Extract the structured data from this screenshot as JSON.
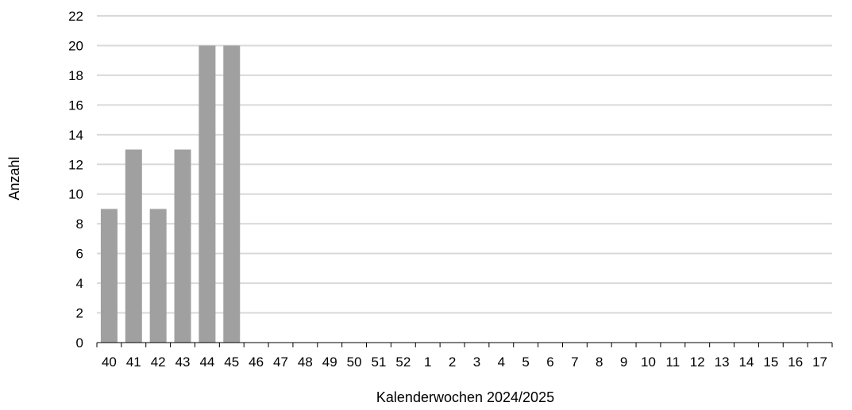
{
  "chart_data": {
    "type": "bar",
    "title": "",
    "xlabel": "Kalenderwochen 2024/2025",
    "ylabel": "Anzahl",
    "ylim": [
      0,
      22
    ],
    "yticks": [
      0,
      2,
      4,
      6,
      8,
      10,
      12,
      14,
      16,
      18,
      20,
      22
    ],
    "grid": true,
    "legend": "none",
    "categories": [
      "40",
      "41",
      "42",
      "43",
      "44",
      "45",
      "46",
      "47",
      "48",
      "49",
      "50",
      "51",
      "52",
      "1",
      "2",
      "3",
      "4",
      "5",
      "6",
      "7",
      "8",
      "9",
      "10",
      "11",
      "12",
      "13",
      "14",
      "15",
      "16",
      "17"
    ],
    "values": [
      9,
      13,
      9,
      13,
      20,
      20,
      null,
      null,
      null,
      null,
      null,
      null,
      null,
      null,
      null,
      null,
      null,
      null,
      null,
      null,
      null,
      null,
      null,
      null,
      null,
      null,
      null,
      null,
      null,
      null
    ],
    "colors": {
      "bar": "#a0a0a0",
      "grid": "#d9d9d9",
      "axis": "#000000",
      "text": "#000000"
    }
  }
}
